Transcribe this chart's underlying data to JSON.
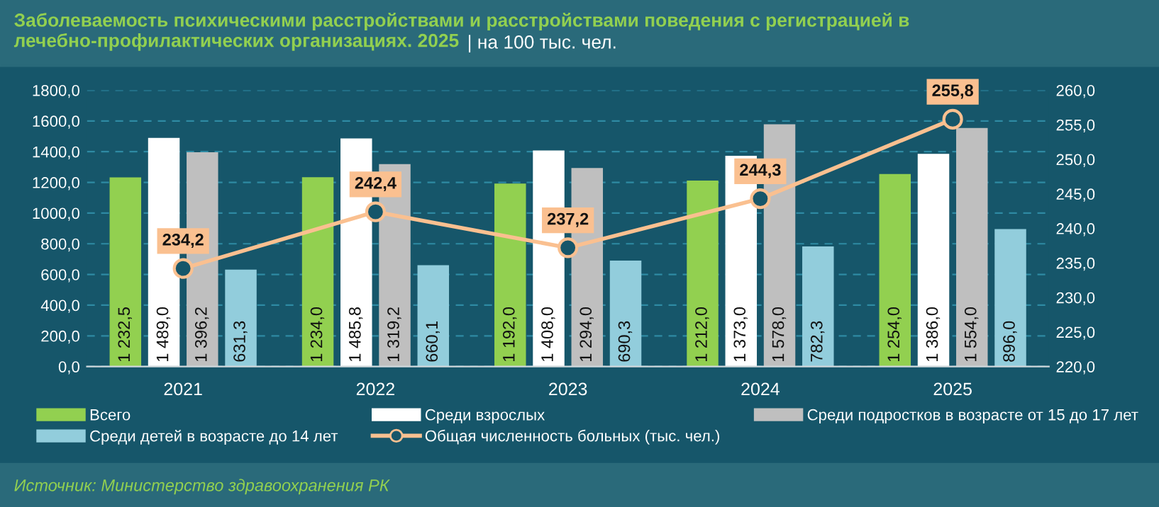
{
  "chart_data": {
    "type": "bar",
    "title": "Заболеваемость психическими расстройствами и расстройствами поведения с регистрацией в лечебно-профилактических организациях. 2025",
    "subtitle": "| на 100 тыс. чел.",
    "categories": [
      "2021",
      "2022",
      "2023",
      "2024",
      "2025"
    ],
    "series": [
      {
        "name": "Всего",
        "color": "#92d050",
        "values": [
          1232.5,
          1234.0,
          1192.0,
          1212.0,
          1254.0
        ],
        "value_labels": [
          "1 232,5",
          "1 234,0",
          "1 192,0",
          "1 212,0",
          "1 254,0"
        ]
      },
      {
        "name": "Среди взрослых",
        "color": "#ffffff",
        "values": [
          1489.0,
          1485.8,
          1408.0,
          1373.0,
          1386.0
        ],
        "value_labels": [
          "1 489,0",
          "1 485,8",
          "1 408,0",
          "1 373,0",
          "1 386,0"
        ]
      },
      {
        "name": "Среди подростков в возрасте от 15 до 17 лет",
        "color": "#bfbfbf",
        "values": [
          1396.2,
          1319.2,
          1294.0,
          1578.0,
          1554.0
        ],
        "value_labels": [
          "1 396,2",
          "1 319,2",
          "1 294,0",
          "1 578,0",
          "1 554,0"
        ]
      },
      {
        "name": "Среди детей в возрасте до 14 лет",
        "color": "#92cddc",
        "values": [
          631.3,
          660.1,
          690.3,
          782.3,
          896.0
        ],
        "value_labels": [
          "631,3",
          "660,1",
          "690,3",
          "782,3",
          "896,0"
        ]
      },
      {
        "name": "Общая численность больных (тыс. чел.)",
        "type": "line",
        "axis": "y2",
        "color": "#fac090",
        "marker": "circle",
        "values": [
          234.2,
          242.4,
          237.2,
          244.3,
          255.8
        ],
        "value_labels": [
          "234,2",
          "242,4",
          "237,2",
          "244,3",
          "255,8"
        ]
      }
    ],
    "ylim": [
      0,
      1800
    ],
    "yticks": [
      {
        "value": 0,
        "label": "0,0"
      },
      {
        "value": 200,
        "label": "200,0"
      },
      {
        "value": 400,
        "label": "400,0"
      },
      {
        "value": 600,
        "label": "600,0"
      },
      {
        "value": 800,
        "label": "800,0"
      },
      {
        "value": 1000,
        "label": "1000,0"
      },
      {
        "value": 1200,
        "label": "1200,0"
      },
      {
        "value": 1400,
        "label": "1400,0"
      },
      {
        "value": 1600,
        "label": "1600,0"
      },
      {
        "value": 1800,
        "label": "1800,0"
      }
    ],
    "y2lim": [
      220,
      260
    ],
    "y2ticks": [
      {
        "value": 220,
        "label": "220,0"
      },
      {
        "value": 225,
        "label": "225,0"
      },
      {
        "value": 230,
        "label": "230,0"
      },
      {
        "value": 235,
        "label": "235,0"
      },
      {
        "value": 240,
        "label": "240,0"
      },
      {
        "value": 245,
        "label": "245,0"
      },
      {
        "value": 250,
        "label": "250,0"
      },
      {
        "value": 255,
        "label": "255,0"
      },
      {
        "value": 260,
        "label": "260,0"
      }
    ],
    "grid": "y",
    "legend": "bottom",
    "annotations": [
      "Источник: Министерство здравоохранения РК"
    ]
  }
}
